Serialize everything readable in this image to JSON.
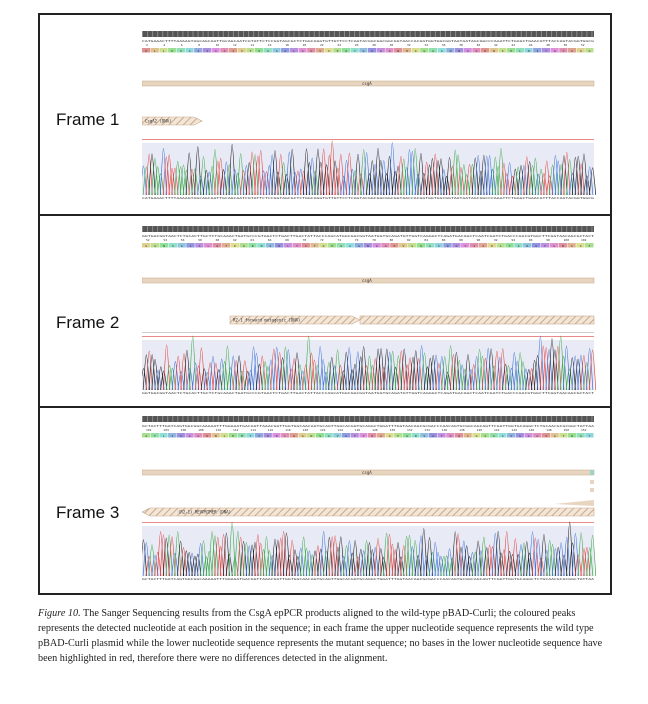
{
  "frames": [
    {
      "label": "Frame 1",
      "ref_seq": "CATGAAACTTTTAAAAGTAGCAGCAATTGCAGCAATCGTATTCTCCGGTAGCGCTCTGGCAGGTGTTGTTCCTCAGTACGGCGGCGGCGGTAACCACGGTGGTGGCGGTAATAATAGCGGCCCAAATTCTGAGCTGAACATTTACCAGTACGGTGGCG",
      "aa_numbers": [
        "2",
        "4",
        "6",
        "8",
        "10",
        "12",
        "14",
        "16",
        "18",
        "20",
        "22",
        "24",
        "26",
        "28",
        "30",
        "32",
        "34",
        "36",
        "38",
        "40",
        "42",
        "44",
        "46",
        "48",
        "50",
        "52"
      ],
      "aa_seq": "KLLKVAAIAAIVFSGSALAGVVPQYGGGGNHGGGGNNSGPNSELNIYQYGGG",
      "feature_name": "csgA",
      "primer_label": "CsgA2 (DNA)",
      "sample_seq": "CATGAAACTTTTAAAAGTAGCAGCAATTGCAGCAATCGTATTCTCCGGTAGCGCTCTGGCAGGTGTTGTTCCTCAGTACGGCGGCGGCGGTAACCACGGTGGTGGCGGTAATAATAGCGGCCCAAATTCTGAGCTGAACATTTACCAGTACGGTGGCG"
    },
    {
      "label": "Frame 2",
      "ref_seq": "GGTGGCGGTAACTCTGCACTTGCTCTGCAAACTGATGCCCGTAACTCTGACTTGACTATTACCCAGCATGGCGGCGGTAATGGTGCAGATGTTGGTCAGGGCTCAGATGACAGCTCAATCGATCTGACCCAACGTGGCTTCGGTAACAGCGCTACT",
      "aa_numbers": [
        "52",
        "54",
        "56",
        "58",
        "60",
        "62",
        "64",
        "66",
        "68",
        "70",
        "72",
        "74",
        "76",
        "78",
        "80",
        "82",
        "84",
        "86",
        "88",
        "90",
        "92",
        "94",
        "96",
        "98",
        "100",
        "102"
      ],
      "aa_seq": "GGNSALALQTDARNSDLTITQHGGGNGADVGQGSDDSSIDLTQRGFGNSAT",
      "feature_name": "csgA",
      "primer_label": "R2-1 forward mutagenic (DNA)",
      "sample_seq": "GGTGGCGGTAACTCTGCACTTGCTCTGCAAACTGATGCCCGTAACTCTGACTTGACTATTACCCAGCATGGCGGCGGTAATGGTGCAGATGTTGGTCAGGGCTCAGATGACAGCTCAATCGATCTGACCCAACGTGGCTTCGGTAACAGCGCTACT"
    },
    {
      "label": "Frame 3",
      "ref_seq": "GCTACTTTGATCAGTGGCGGCAAAAATTTGGAAATGACGGTTAAACGGTTGGTGGCAACAGTGCAGTTGGCACGGTGCAGGCTGGATTTGGTAACAGCGCGACCCAACAGTGCGGCAGCAGTTCGGTTGGTGCAGGCTCTGCAACGCGCGGCTATTAA",
      "aa_numbers": [
        "102",
        "104",
        "106",
        "108",
        "110",
        "112",
        "114",
        "116",
        "118",
        "120",
        "122",
        "124",
        "126",
        "128",
        "130",
        "132",
        "134",
        "136",
        "138",
        "140",
        "142",
        "144",
        "146",
        "148",
        "150",
        "152"
      ],
      "aa_seq": "ATLISGGKNLEMTVKRLGGNSAVGTVQAGFGNSATQQCGSSSVGAGSATRGY",
      "feature_name": "csgA",
      "primer_label": "(R2-1) REVPRIMER (DNA)",
      "sample_seq": "GCTACTTTGATCAGTGGCGGCAAAAATTTGGAAATGACGGTTAAACGGTTGGTGGCAACAGTGCAGTTGGCACGGTGCAGGCTGGATTTGGTAACAGCGCGACCCAACAGTGCGGCAGCAGTTCGGTTGGTGCAGGCTCTGCAACGCGCGGCTATTAA"
    }
  ],
  "caption": {
    "fig_ref": "Figure 10.",
    "text": " The Sanger Sequencing results from the CsgA epPCR products aligned to the wild-type pBAD-Curli; the coloured peaks represents the detected nucleotide at each position in the sequence; in each frame the upper nucleotide sequence represents the wild type pBAD-Curli plasmid while the lower nucleotide sequence represents the mutant sequence; no bases in the lower nucleotide sequence have been highlighted in red, therefore there were no differences detected in the alignment."
  },
  "colors": {
    "A": "#3aa845",
    "C": "#3b6fd6",
    "G": "#222222",
    "T": "#e2413b",
    "feature": "#e8d5bf",
    "feature_border": "#c4a888",
    "primer_hatch": "#c9a98a",
    "coverage": "#d8dcf0",
    "red_line": "#e88a8a"
  }
}
